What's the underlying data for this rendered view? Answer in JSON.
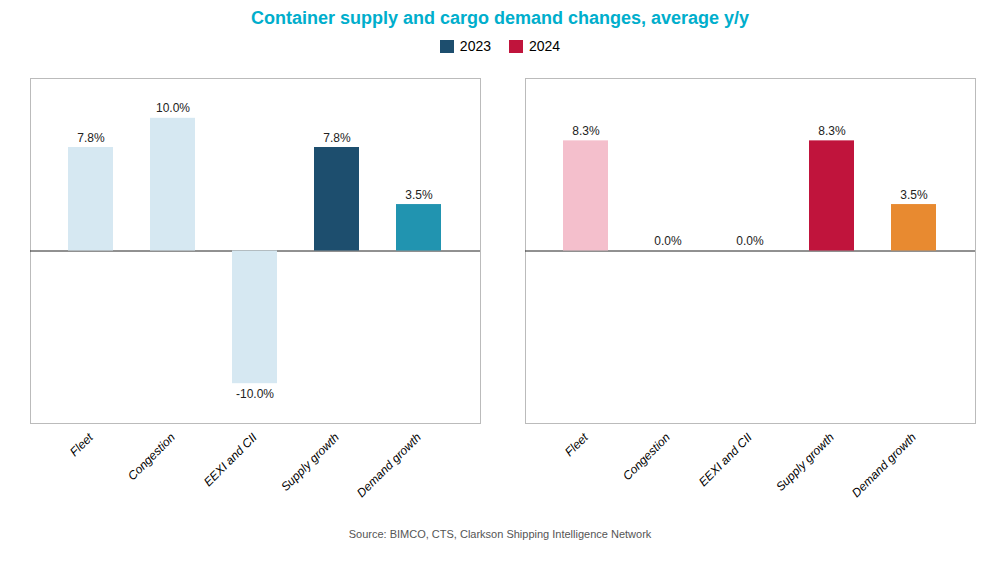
{
  "chart_data": {
    "type": "bar",
    "title": "Container supply and cargo demand changes, average y/y",
    "annotations": [
      "Source: BIMCO, CTS, Clarkson Shipping Intelligence Network"
    ],
    "categories": [
      "Fleet",
      "Congestion",
      "EEXI and CII",
      "Supply growth",
      "Demand growth"
    ],
    "series": [
      {
        "name": "2023",
        "color": "#1D4E6E",
        "colors": [
          "#D6E8F2",
          "#D6E8F2",
          "#D6E8F2",
          "#1D4E6E",
          "#2194B0"
        ],
        "values": [
          7.8,
          10.0,
          -10.0,
          7.8,
          3.5
        ],
        "value_labels": [
          "7.8%",
          "10.0%",
          "-10.0%",
          "7.8%",
          "3.5%"
        ]
      },
      {
        "name": "2024",
        "color": "#C0143C",
        "colors": [
          "#F4BFCC",
          "#F4BFCC",
          "#F4BFCC",
          "#C0143C",
          "#E88A30"
        ],
        "values": [
          8.3,
          0.0,
          0.0,
          8.3,
          3.5
        ],
        "value_labels": [
          "8.3%",
          "0.0%",
          "0.0%",
          "8.3%",
          "3.5%"
        ]
      }
    ],
    "ylim": [
      -13,
      13
    ],
    "tick_labels": "x",
    "data_labels": true,
    "legend": "top",
    "grid": false
  }
}
